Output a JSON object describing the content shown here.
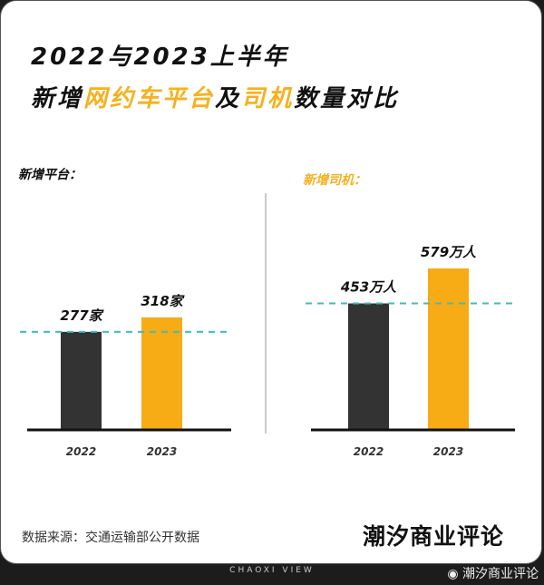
{
  "title_line1": "2022与2023上半年",
  "title_line2_parts": [
    {
      "text": "新增",
      "highlight": false
    },
    {
      "text": "网约车平台",
      "highlight": true
    },
    {
      "text": "及",
      "highlight": false
    },
    {
      "text": "司机",
      "highlight": true
    },
    {
      "text": "数量对比",
      "highlight": false
    }
  ],
  "colors": {
    "bar_2022": "#333333",
    "bar_2023": "#f7ab15",
    "reference_line": "#3bbfbf",
    "highlight": "#f7b01e"
  },
  "chart_data": [
    {
      "type": "bar",
      "title": "新增平台：",
      "categories": [
        "2022",
        "2023"
      ],
      "values": [
        277,
        318
      ],
      "value_labels": [
        "277家",
        "318家"
      ],
      "unit": "家",
      "reference_line_at": 277
    },
    {
      "type": "bar",
      "title": "新增司机：",
      "categories": [
        "2022",
        "2023"
      ],
      "values": [
        453,
        579
      ],
      "value_labels": [
        "453万人",
        "579万人"
      ],
      "unit": "万人",
      "reference_line_at": 453
    }
  ],
  "source": "数据来源：交通运输部公开数据",
  "logo": "潮汐商业评论",
  "footer_en": "CHAOXI VIEW",
  "watermark": "潮汐商业评论",
  "watermark_icon": "weibo-icon"
}
